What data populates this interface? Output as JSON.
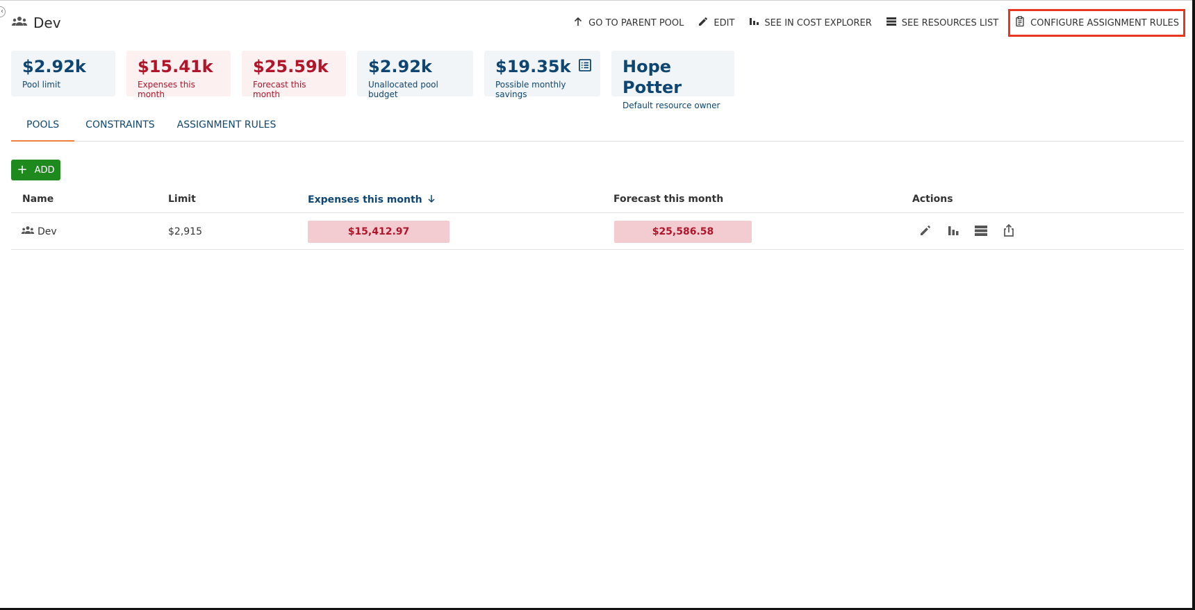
{
  "header": {
    "title": "Dev",
    "actions": {
      "parent_pool": "GO TO PARENT POOL",
      "edit": "EDIT",
      "cost_explorer": "SEE IN COST EXPLORER",
      "resources_list": "SEE RESOURCES LIST",
      "configure_rules": "CONFIGURE ASSIGNMENT RULES"
    }
  },
  "cards": {
    "pool_limit": {
      "value": "$2.92k",
      "label": "Pool limit"
    },
    "expenses": {
      "value": "$15.41k",
      "label": "Expenses this month"
    },
    "forecast": {
      "value": "$25.59k",
      "label": "Forecast this month"
    },
    "unallocated": {
      "value": "$2.92k",
      "label": "Unallocated pool budget"
    },
    "savings": {
      "value": "$19.35k",
      "label": "Possible monthly savings"
    },
    "owner": {
      "value": "Hope Potter",
      "label": "Default resource owner"
    }
  },
  "tabs": {
    "pools": "POOLS",
    "constraints": "CONSTRAINTS",
    "assignment_rules": "ASSIGNMENT RULES"
  },
  "add_button": "ADD",
  "table": {
    "headers": {
      "name": "Name",
      "limit": "Limit",
      "expenses": "Expenses this month",
      "forecast": "Forecast this month",
      "actions": "Actions"
    },
    "rows": [
      {
        "name": "Dev",
        "limit": "$2,915",
        "expenses": "$15,412.97",
        "forecast": "$25,586.58"
      }
    ]
  },
  "colors": {
    "primary": "#0f4671",
    "danger": "#b0152a",
    "success": "#1e8a1e",
    "tab_indicator": "#ef7d3c",
    "highlight_box": "#e8361f"
  }
}
